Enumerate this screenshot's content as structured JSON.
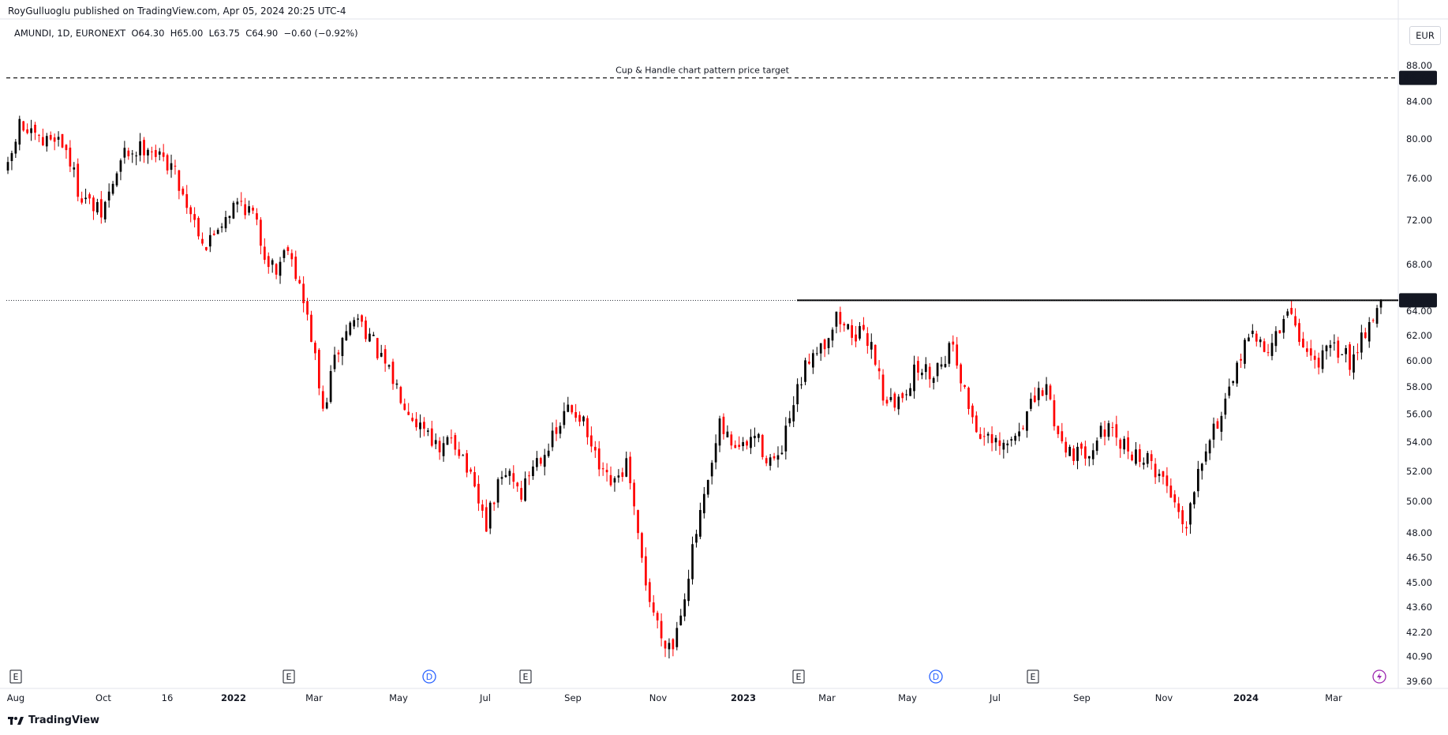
{
  "header": {
    "published_by": "RoyGulluoglu published on TradingView.com, Apr 05, 2024 20:25 UTC-4"
  },
  "legend": {
    "text": "AMUNDI, 1D, EURONEXT  O64.30  H65.00  L63.75  C64.90  −0.60 (−0.92%)"
  },
  "currency": "EUR",
  "brand": "TradingView",
  "colors": {
    "up": "#000000",
    "down": "#ff0000",
    "target_line": "#000000",
    "resistance_line": "#000000",
    "event_blue": "#2962ff",
    "event_purple": "#9c27b0"
  },
  "chart_data": {
    "type": "candlestick",
    "symbol": "AMUNDI",
    "interval": "1D",
    "exchange": "EURONEXT",
    "currency": "EUR",
    "ohlc_last": {
      "open": 64.3,
      "high": 65.0,
      "low": 63.75,
      "close": 64.9,
      "change": -0.6,
      "change_pct": -0.92
    },
    "y_axis": {
      "scale": "log",
      "ticks": [
        "88.00",
        "84.00",
        "80.00",
        "76.00",
        "72.00",
        "68.00",
        "64.00",
        "62.00",
        "60.00",
        "58.00",
        "56.00",
        "54.00",
        "52.00",
        "50.00",
        "48.00",
        "46.50",
        "45.00",
        "43.60",
        "42.20",
        "40.90",
        "39.60"
      ]
    },
    "x_axis": {
      "ticks": [
        {
          "label": "Aug",
          "bold": false
        },
        {
          "label": "Oct",
          "bold": false
        },
        {
          "label": "16",
          "bold": false
        },
        {
          "label": "2022",
          "bold": true
        },
        {
          "label": "Mar",
          "bold": false
        },
        {
          "label": "May",
          "bold": false
        },
        {
          "label": "Jul",
          "bold": false
        },
        {
          "label": "Sep",
          "bold": false
        },
        {
          "label": "Nov",
          "bold": false
        },
        {
          "label": "2023",
          "bold": true
        },
        {
          "label": "Mar",
          "bold": false
        },
        {
          "label": "May",
          "bold": false
        },
        {
          "label": "Jul",
          "bold": false
        },
        {
          "label": "Sep",
          "bold": false
        },
        {
          "label": "Nov",
          "bold": false
        },
        {
          "label": "2024",
          "bold": true
        },
        {
          "label": "Mar",
          "bold": false
        }
      ]
    },
    "annotations": [
      {
        "text": "Cup & Handle chart pattern price target",
        "price": 86.6,
        "style": "dashed"
      },
      {
        "text": "",
        "price": 64.9,
        "style": "solid",
        "start_label": "Feb 2023"
      }
    ],
    "price_labels": [
      "86.60",
      "64.90"
    ],
    "events": [
      {
        "type": "E"
      },
      {
        "type": "E"
      },
      {
        "type": "D"
      },
      {
        "type": "E"
      },
      {
        "type": "E"
      },
      {
        "type": "D"
      },
      {
        "type": "E"
      },
      {
        "type": "flash"
      }
    ],
    "close_path": [
      {
        "t": 0,
        "c": 76.8
      },
      {
        "t": 3,
        "c": 81.5
      },
      {
        "t": 6,
        "c": 80.2
      },
      {
        "t": 9,
        "c": 79.5
      },
      {
        "t": 12,
        "c": 80.5
      },
      {
        "t": 15,
        "c": 79.0
      },
      {
        "t": 18,
        "c": 75.0
      },
      {
        "t": 21,
        "c": 73.5
      },
      {
        "t": 24,
        "c": 72.5
      },
      {
        "t": 27,
        "c": 75.5
      },
      {
        "t": 30,
        "c": 78.5
      },
      {
        "t": 33,
        "c": 78.8
      },
      {
        "t": 36,
        "c": 79.5
      },
      {
        "t": 39,
        "c": 78.0
      },
      {
        "t": 42,
        "c": 77.5
      },
      {
        "t": 45,
        "c": 74.5
      },
      {
        "t": 48,
        "c": 72.0
      },
      {
        "t": 51,
        "c": 69.5
      },
      {
        "t": 54,
        "c": 71.5
      },
      {
        "t": 57,
        "c": 73.0
      },
      {
        "t": 60,
        "c": 73.8
      },
      {
        "t": 63,
        "c": 72.5
      },
      {
        "t": 66,
        "c": 69.0
      },
      {
        "t": 69,
        "c": 67.5
      },
      {
        "t": 72,
        "c": 70.0
      },
      {
        "t": 75,
        "c": 66.0
      },
      {
        "t": 78,
        "c": 62.0
      },
      {
        "t": 81,
        "c": 56.0
      },
      {
        "t": 84,
        "c": 60.0
      },
      {
        "t": 87,
        "c": 62.5
      },
      {
        "t": 90,
        "c": 63.5
      },
      {
        "t": 93,
        "c": 62.0
      },
      {
        "t": 96,
        "c": 60.0
      },
      {
        "t": 99,
        "c": 58.5
      },
      {
        "t": 102,
        "c": 57.0
      },
      {
        "t": 105,
        "c": 55.5
      },
      {
        "t": 108,
        "c": 55.0
      },
      {
        "t": 111,
        "c": 53.0
      },
      {
        "t": 114,
        "c": 54.5
      },
      {
        "t": 117,
        "c": 53.0
      },
      {
        "t": 120,
        "c": 50.5
      },
      {
        "t": 123,
        "c": 48.5
      },
      {
        "t": 126,
        "c": 51.0
      },
      {
        "t": 129,
        "c": 52.0
      },
      {
        "t": 132,
        "c": 50.5
      },
      {
        "t": 135,
        "c": 52.5
      },
      {
        "t": 138,
        "c": 53.5
      },
      {
        "t": 141,
        "c": 54.5
      },
      {
        "t": 144,
        "c": 56.5
      },
      {
        "t": 147,
        "c": 56.0
      },
      {
        "t": 150,
        "c": 53.5
      },
      {
        "t": 153,
        "c": 51.5
      },
      {
        "t": 156,
        "c": 51.0
      },
      {
        "t": 159,
        "c": 52.5
      },
      {
        "t": 162,
        "c": 47.5
      },
      {
        "t": 165,
        "c": 44.0
      },
      {
        "t": 168,
        "c": 42.0
      },
      {
        "t": 171,
        "c": 41.5
      },
      {
        "t": 174,
        "c": 44.5
      },
      {
        "t": 177,
        "c": 48.0
      },
      {
        "t": 180,
        "c": 51.0
      },
      {
        "t": 183,
        "c": 55.0
      },
      {
        "t": 186,
        "c": 54.0
      },
      {
        "t": 189,
        "c": 53.5
      },
      {
        "t": 192,
        "c": 54.5
      },
      {
        "t": 195,
        "c": 53.0
      },
      {
        "t": 198,
        "c": 52.5
      },
      {
        "t": 201,
        "c": 55.5
      },
      {
        "t": 204,
        "c": 58.5
      },
      {
        "t": 207,
        "c": 61.0
      },
      {
        "t": 210,
        "c": 61.5
      },
      {
        "t": 213,
        "c": 63.5
      },
      {
        "t": 216,
        "c": 62.5
      },
      {
        "t": 219,
        "c": 62.0
      },
      {
        "t": 222,
        "c": 61.5
      },
      {
        "t": 225,
        "c": 57.5
      },
      {
        "t": 228,
        "c": 56.5
      },
      {
        "t": 231,
        "c": 58.0
      },
      {
        "t": 234,
        "c": 59.5
      },
      {
        "t": 237,
        "c": 59.0
      },
      {
        "t": 240,
        "c": 60.0
      },
      {
        "t": 243,
        "c": 61.5
      },
      {
        "t": 246,
        "c": 57.5
      },
      {
        "t": 249,
        "c": 55.0
      },
      {
        "t": 252,
        "c": 54.0
      },
      {
        "t": 255,
        "c": 53.5
      },
      {
        "t": 258,
        "c": 54.0
      },
      {
        "t": 261,
        "c": 55.5
      },
      {
        "t": 264,
        "c": 57.0
      },
      {
        "t": 267,
        "c": 58.0
      },
      {
        "t": 270,
        "c": 54.5
      },
      {
        "t": 273,
        "c": 53.5
      },
      {
        "t": 276,
        "c": 53.0
      },
      {
        "t": 279,
        "c": 54.0
      },
      {
        "t": 282,
        "c": 55.0
      },
      {
        "t": 285,
        "c": 54.0
      },
      {
        "t": 288,
        "c": 53.5
      },
      {
        "t": 291,
        "c": 53.0
      },
      {
        "t": 294,
        "c": 52.5
      },
      {
        "t": 297,
        "c": 51.5
      },
      {
        "t": 300,
        "c": 50.0
      },
      {
        "t": 303,
        "c": 48.5
      },
      {
        "t": 306,
        "c": 52.5
      },
      {
        "t": 309,
        "c": 54.5
      },
      {
        "t": 312,
        "c": 56.0
      },
      {
        "t": 315,
        "c": 58.0
      },
      {
        "t": 318,
        "c": 62.0
      },
      {
        "t": 321,
        "c": 61.5
      },
      {
        "t": 324,
        "c": 61.0
      },
      {
        "t": 327,
        "c": 62.5
      },
      {
        "t": 330,
        "c": 64.0
      },
      {
        "t": 333,
        "c": 61.0
      },
      {
        "t": 336,
        "c": 60.0
      },
      {
        "t": 339,
        "c": 60.5
      },
      {
        "t": 342,
        "c": 61.0
      },
      {
        "t": 345,
        "c": 60.0
      },
      {
        "t": 348,
        "c": 62.0
      },
      {
        "t": 351,
        "c": 63.5
      },
      {
        "t": 353,
        "c": 64.9
      }
    ]
  }
}
